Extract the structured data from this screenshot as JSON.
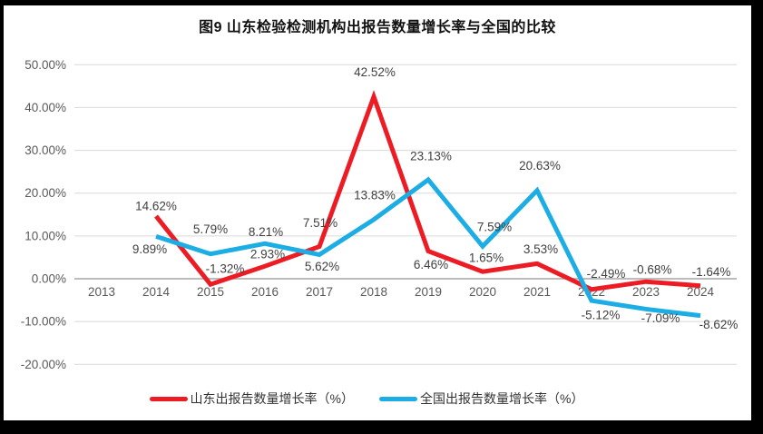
{
  "page": {
    "background_color": "#000000",
    "card_color": "#ffffff"
  },
  "title": "图9  山东检验检测机构出报告数量增长率与全国的比较",
  "chart_data": {
    "type": "line",
    "categories": [
      "2013",
      "2014",
      "2015",
      "2016",
      "2017",
      "2018",
      "2019",
      "2020",
      "2021",
      "2022",
      "2023",
      "2024"
    ],
    "series": [
      {
        "name": "山东出报告数量增长率（%）",
        "color": "#ED1C24",
        "values": [
          null,
          14.62,
          -1.32,
          2.93,
          7.51,
          42.52,
          6.46,
          1.65,
          3.53,
          -2.49,
          -0.68,
          -1.64
        ],
        "labels": [
          "",
          "14.62%",
          "-1.32%",
          "2.93%",
          "7.51%",
          "42.52%",
          "6.46%",
          "1.65%",
          "3.53%",
          "-2.49%",
          "-0.68%",
          "-1.64%"
        ],
        "label_offsets": [
          [
            0,
            0
          ],
          [
            0,
            -11
          ],
          [
            16,
            -17
          ],
          [
            3,
            -13
          ],
          [
            1,
            -26
          ],
          [
            1,
            -27
          ],
          [
            3,
            15
          ],
          [
            4,
            -15
          ],
          [
            4,
            -16
          ],
          [
            16,
            -17
          ],
          [
            7,
            -13
          ],
          [
            12,
            -15
          ]
        ]
      },
      {
        "name": "全国出报告数量增长率（%）",
        "color": "#1CADE4",
        "values": [
          null,
          9.89,
          5.79,
          8.21,
          5.62,
          13.83,
          23.13,
          7.59,
          20.63,
          -5.12,
          -7.09,
          -8.62
        ],
        "labels": [
          "",
          "9.89%",
          "5.79%",
          "8.21%",
          "5.62%",
          "13.83%",
          "23.13%",
          "7.59%",
          "20.63%",
          "-5.12%",
          "-7.09%",
          "-8.62%"
        ],
        "label_offsets": [
          [
            0,
            0
          ],
          [
            -7,
            14
          ],
          [
            0,
            -27
          ],
          [
            1,
            -13
          ],
          [
            3,
            13
          ],
          [
            1,
            -27
          ],
          [
            3,
            -26
          ],
          [
            13,
            -21
          ],
          [
            3,
            -27
          ],
          [
            10,
            16
          ],
          [
            16,
            10
          ],
          [
            20,
            10
          ]
        ]
      }
    ],
    "y_axis": {
      "min": -20,
      "max": 50,
      "step": 10,
      "tick_labels": [
        "50.00%",
        "40.00%",
        "30.00%",
        "20.00%",
        "10.00%",
        "0.00%",
        "-10.00%",
        "-20.00%"
      ],
      "tick_values": [
        50,
        40,
        30,
        20,
        10,
        0,
        -10,
        -20
      ],
      "format": "percent"
    },
    "grid": true,
    "legend_position": "bottom",
    "colors": {
      "gridline": "#D9D9D9",
      "axis_line": "#A6A6A6",
      "tick_label": "#595959",
      "data_label": "#404040"
    }
  }
}
